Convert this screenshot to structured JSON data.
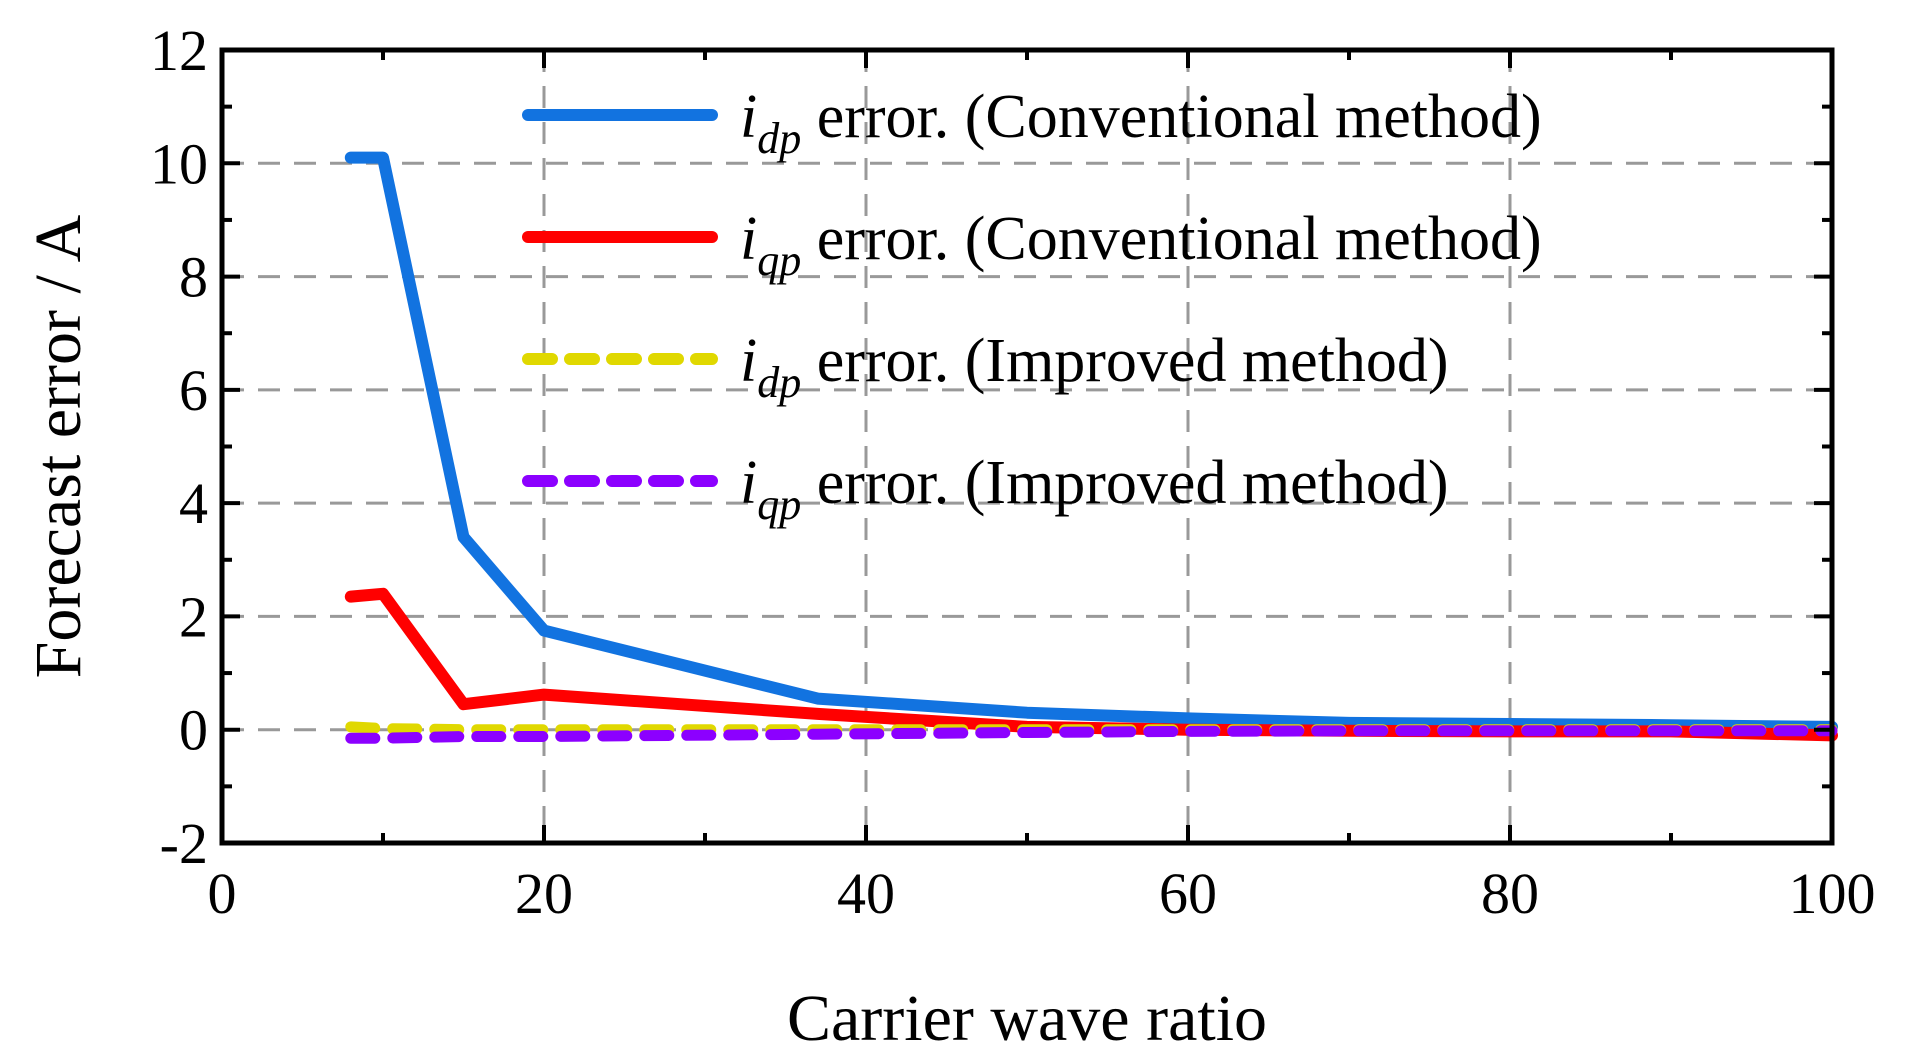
{
  "chart_data": {
    "type": "line",
    "xlabel": "Carrier wave ratio",
    "ylabel": "Forecast error / A",
    "xlim": [
      0,
      100
    ],
    "ylim": [
      -2,
      12
    ],
    "xticks": [
      0,
      20,
      40,
      60,
      80,
      100
    ],
    "yticks": [
      -2,
      0,
      2,
      4,
      6,
      8,
      10,
      12
    ],
    "xtick_labels": [
      "0",
      "20",
      "40",
      "60",
      "80",
      "100"
    ],
    "ytick_labels": [
      "-2",
      "0",
      "2",
      "4",
      "6",
      "8",
      "10",
      "12"
    ],
    "grid": true,
    "legend_position": "top-right",
    "series": [
      {
        "name": "idp error. (Conventional method)",
        "legend": {
          "var": "i",
          "sub": "dp",
          "text": " error. (Conventional method)"
        },
        "color": "#1273e0",
        "style": "solid",
        "x": [
          8,
          10,
          15,
          20,
          37,
          50,
          60,
          70,
          80,
          90,
          100
        ],
        "y": [
          10.1,
          10.1,
          3.4,
          1.75,
          0.55,
          0.3,
          0.2,
          0.12,
          0.1,
          0.08,
          0.05
        ]
      },
      {
        "name": "iqp error. (Conventional method)",
        "legend": {
          "var": "i",
          "sub": "qp",
          "text": " error. (Conventional method)"
        },
        "color": "#ff0000",
        "style": "solid",
        "x": [
          8,
          10,
          15,
          20,
          37,
          50,
          60,
          70,
          80,
          90,
          100
        ],
        "y": [
          2.35,
          2.4,
          0.45,
          0.62,
          0.28,
          0.05,
          0.0,
          -0.02,
          -0.03,
          -0.03,
          -0.1
        ]
      },
      {
        "name": "idp error. (Improved method)",
        "legend": {
          "var": "i",
          "sub": "dp",
          "text": " error. (Improved method)"
        },
        "color": "#e0d800",
        "style": "dashed",
        "x": [
          8,
          10,
          15,
          20,
          37,
          50,
          60,
          70,
          80,
          90,
          100
        ],
        "y": [
          0.05,
          0.02,
          0.0,
          0.0,
          0.0,
          0.0,
          0.0,
          0.0,
          0.0,
          0.0,
          0.0
        ]
      },
      {
        "name": "iqp error. (Improved method)",
        "legend": {
          "var": "i",
          "sub": "qp",
          "text": " error. (Improved method)"
        },
        "color": "#8c00ff",
        "style": "dashed",
        "x": [
          8,
          10,
          15,
          20,
          37,
          50,
          60,
          70,
          80,
          90,
          100
        ],
        "y": [
          -0.15,
          -0.15,
          -0.12,
          -0.12,
          -0.08,
          -0.05,
          -0.03,
          -0.02,
          -0.02,
          -0.02,
          -0.02
        ]
      }
    ]
  }
}
